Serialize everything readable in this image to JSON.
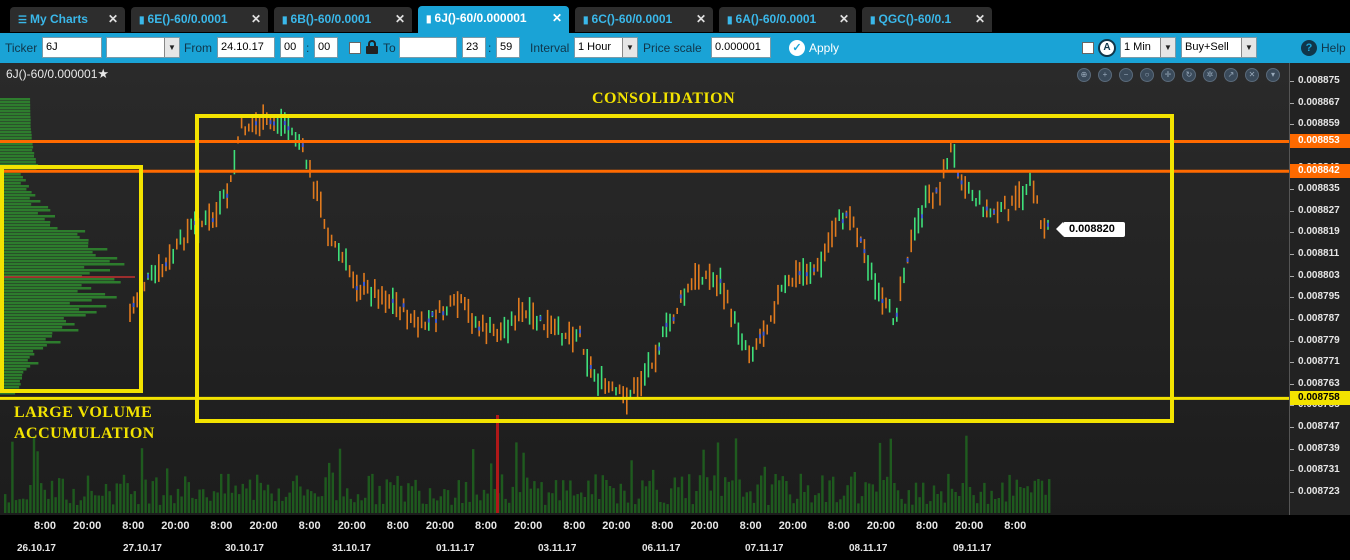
{
  "tabs": [
    {
      "label": "My Charts",
      "kind": "menu",
      "active": false
    },
    {
      "label": "6E()-60/0.0001",
      "kind": "chart",
      "active": false
    },
    {
      "label": "6B()-60/0.0001",
      "kind": "chart",
      "active": false
    },
    {
      "label": "6J()-60/0.000001",
      "kind": "chart",
      "active": true
    },
    {
      "label": "6C()-60/0.0001",
      "kind": "chart",
      "active": false
    },
    {
      "label": "6A()-60/0.0001",
      "kind": "chart",
      "active": false
    },
    {
      "label": "QGC()-60/0.1",
      "kind": "chart",
      "active": false
    }
  ],
  "toolbar": {
    "ticker_label": "Ticker",
    "ticker_value": "6J",
    "contract_value": "",
    "from_label": "From",
    "from_date": "24.10.17",
    "from_hour": "00",
    "from_minute": "00",
    "to_label": "To",
    "to_date": "",
    "to_hour": "23",
    "to_minute": "59",
    "time_sep": ":",
    "interval_label": "Interval",
    "interval_value": "1 Hour",
    "price_scale_label": "Price scale",
    "price_scale_value": "0.000001",
    "apply_label": "Apply",
    "timeframe_value": "1 Min",
    "side_value": "Buy+Sell",
    "help_label": "Help"
  },
  "chart": {
    "instrument_title": "6J()-60/0.000001",
    "last_price": "0.008820",
    "annotations": {
      "consolidation": "CONSOLIDATION",
      "accumulation_line1": "LARGE VOLUME",
      "accumulation_line2": "ACCUMULATION"
    },
    "colors": {
      "up_bar": "#3ee07a",
      "down_bar": "#e07a1e",
      "annotation": "#f3e300",
      "resistance": "#ff6a00",
      "support": "#f3e300"
    },
    "price_axis": {
      "ticks": [
        "0.008875",
        "0.008867",
        "0.008859",
        "0.008851",
        "0.008843",
        "0.008835",
        "0.008827",
        "0.008819",
        "0.008811",
        "0.008803",
        "0.008795",
        "0.008787",
        "0.008779",
        "0.008771",
        "0.008763",
        "0.008755",
        "0.008747",
        "0.008739",
        "0.008731",
        "0.008723"
      ],
      "markers": [
        {
          "label": "0.008853",
          "value": 0.008853,
          "style": "resistance"
        },
        {
          "label": "0.008842",
          "value": 0.008842,
          "style": "resistance"
        },
        {
          "label": "0.008758",
          "value": 0.008758,
          "style": "support"
        }
      ]
    },
    "time_axis": {
      "hours": [
        "8:00",
        "20:00",
        "8:00",
        "20:00",
        "8:00",
        "20:00",
        "8:00",
        "20:00",
        "8:00",
        "20:00",
        "8:00",
        "20:00",
        "8:00",
        "20:00",
        "8:00",
        "20:00",
        "8:00",
        "20:00",
        "8:00",
        "20:00",
        "8:00",
        "20:00",
        "8:00"
      ],
      "dates": [
        "26.10.17",
        "27.10.17",
        "30.10.17",
        "31.10.17",
        "01.11.17",
        "03.11.17",
        "06.11.17",
        "07.11.17",
        "08.11.17",
        "09.11.17"
      ]
    }
  }
}
